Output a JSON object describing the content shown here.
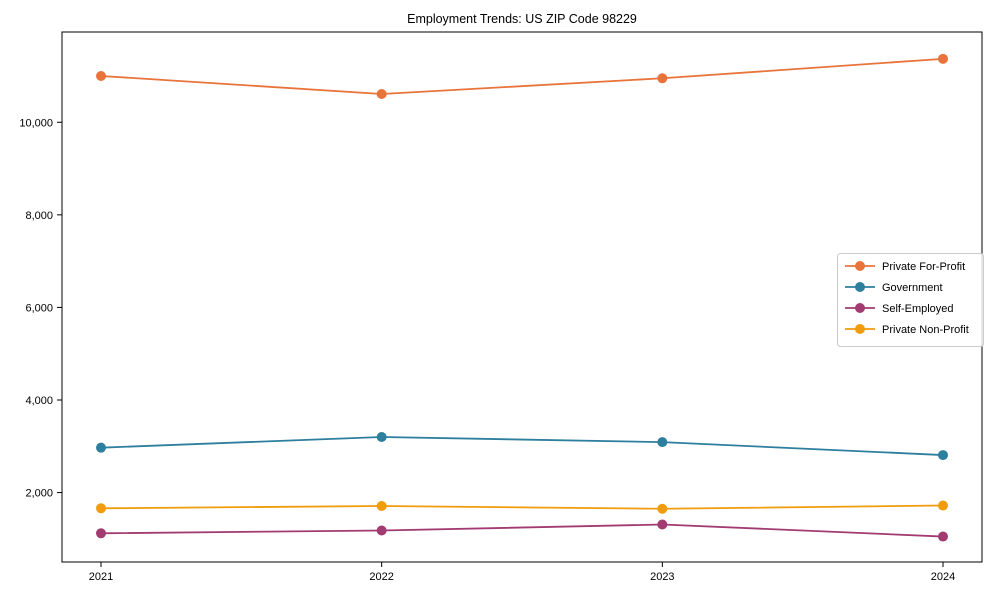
{
  "chart_data": {
    "type": "line",
    "title": "Employment Trends: US ZIP Code 98229",
    "x": [
      "2021",
      "2022",
      "2023",
      "2024"
    ],
    "xlabel": "",
    "ylabel": "",
    "ylim": [
      500,
      11950
    ],
    "yticks": [
      2000,
      4000,
      6000,
      8000,
      10000
    ],
    "ytick_labels": [
      "2,000",
      "4,000",
      "6,000",
      "8,000",
      "10,000"
    ],
    "grid": false,
    "legend_position": "center-right",
    "marker": "circle",
    "series": [
      {
        "name": "Private For-Profit",
        "color": "#e8743b",
        "values": [
          11000,
          10610,
          10950,
          11370
        ]
      },
      {
        "name": "Government",
        "color": "#2e7e9e",
        "values": [
          2970,
          3200,
          3090,
          2810
        ]
      },
      {
        "name": "Self-Employed",
        "color": "#a23b72",
        "values": [
          1120,
          1180,
          1310,
          1050
        ]
      },
      {
        "name": "Private Non-Profit",
        "color": "#f09c0c",
        "values": [
          1660,
          1710,
          1650,
          1720
        ]
      }
    ]
  }
}
